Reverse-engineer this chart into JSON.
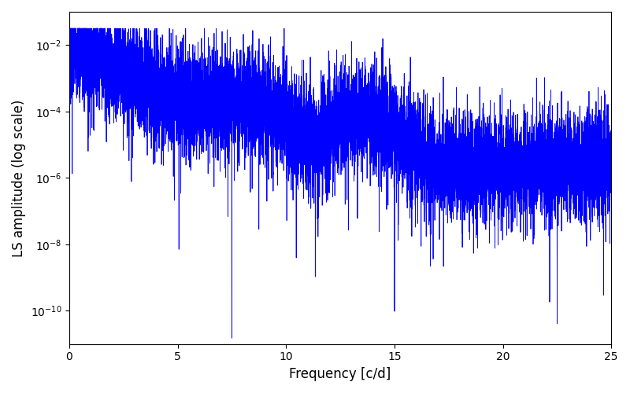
{
  "title": "",
  "xlabel": "Frequency [c/d]",
  "ylabel": "LS amplitude (log scale)",
  "xlim": [
    0,
    25
  ],
  "ylim": [
    1e-11,
    0.1
  ],
  "yticks": [
    1e-10,
    1e-08,
    1e-06,
    0.0001,
    0.01
  ],
  "line_color": "#0000ff",
  "line_width": 0.6,
  "background_color": "#ffffff",
  "freq_min": 0.0,
  "freq_max": 25.0,
  "n_points": 10000,
  "seed": 7
}
